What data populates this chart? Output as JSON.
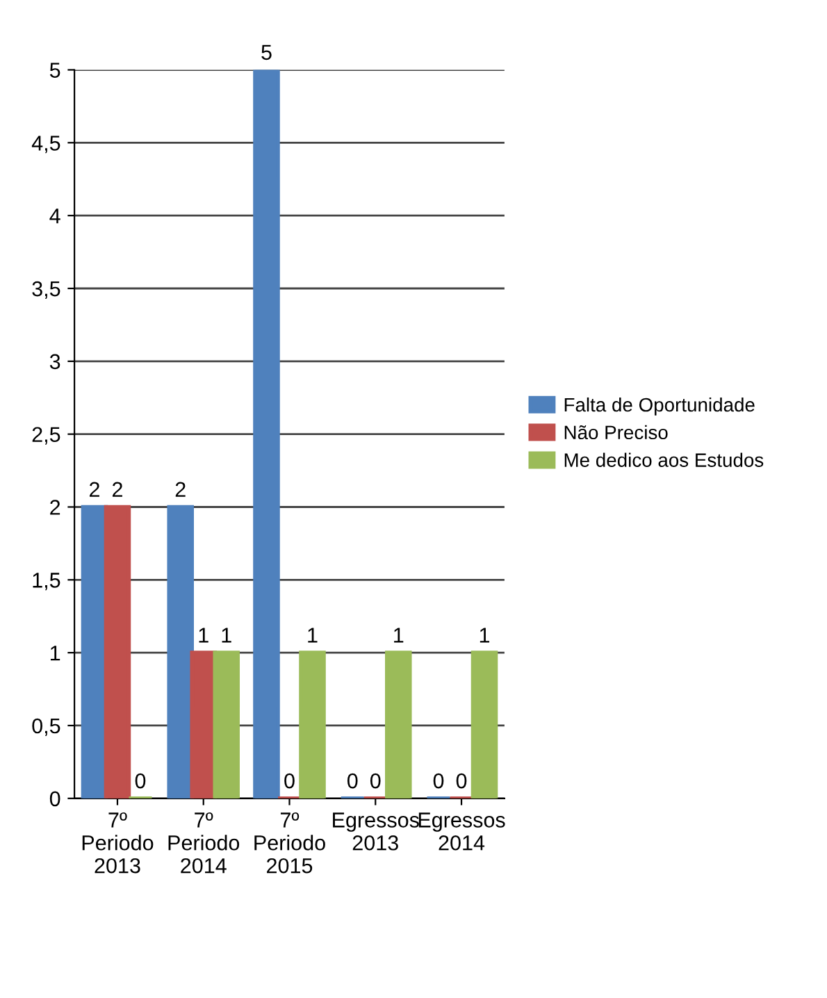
{
  "chart_data": {
    "type": "bar",
    "categories": [
      "7º\nPeriodo\n2013",
      "7º\nPeriodo\n2014",
      "7º\nPeriodo\n2015",
      "Egressos\n2013",
      "Egressos\n2014"
    ],
    "series": [
      {
        "name": "Falta de Oportunidade",
        "color": "#4f81bd",
        "values": [
          2,
          2,
          5,
          0,
          0
        ]
      },
      {
        "name": "Não Preciso",
        "color": "#c0504d",
        "values": [
          2,
          1,
          0,
          0,
          0
        ]
      },
      {
        "name": "Me dedico aos Estudos",
        "color": "#9bbb59",
        "values": [
          0,
          1,
          1,
          1,
          1
        ]
      }
    ],
    "ylim": [
      0,
      5
    ],
    "yticks": [
      0,
      {
        "value": 0.5,
        "label": "0,5"
      },
      1,
      {
        "value": 1.5,
        "label": "1,5"
      },
      2,
      {
        "value": 2.5,
        "label": "2,5"
      },
      3,
      {
        "value": 3.5,
        "label": "3,5"
      },
      4,
      {
        "value": 4.5,
        "label": "4,5"
      },
      5
    ],
    "grid": "y",
    "legend": "right",
    "data_labels": true
  }
}
